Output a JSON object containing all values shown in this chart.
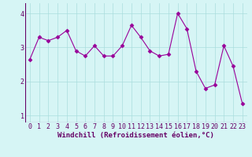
{
  "x": [
    0,
    1,
    2,
    3,
    4,
    5,
    6,
    7,
    8,
    9,
    10,
    11,
    12,
    13,
    14,
    15,
    16,
    17,
    18,
    19,
    20,
    21,
    22,
    23
  ],
  "y": [
    2.65,
    3.3,
    3.2,
    3.3,
    3.5,
    2.9,
    2.75,
    3.05,
    2.75,
    2.75,
    3.05,
    3.65,
    3.3,
    2.9,
    2.75,
    2.8,
    4.0,
    3.55,
    2.3,
    1.8,
    1.9,
    3.05,
    2.45,
    1.35
  ],
  "line_color": "#990099",
  "marker": "D",
  "marker_size": 2.5,
  "bg_color": "#d6f5f5",
  "grid_color": "#aadddd",
  "xlabel": "Windchill (Refroidissement éolien,°C)",
  "xlabel_color": "#660066",
  "xlabel_fontsize": 6.5,
  "tick_color": "#660066",
  "tick_fontsize": 6.0,
  "ylim": [
    0.8,
    4.3
  ],
  "xlim": [
    -0.5,
    23.5
  ],
  "yticks": [
    1,
    2,
    3,
    4
  ],
  "xticks": [
    0,
    1,
    2,
    3,
    4,
    5,
    6,
    7,
    8,
    9,
    10,
    11,
    12,
    13,
    14,
    15,
    16,
    17,
    18,
    19,
    20,
    21,
    22,
    23
  ]
}
